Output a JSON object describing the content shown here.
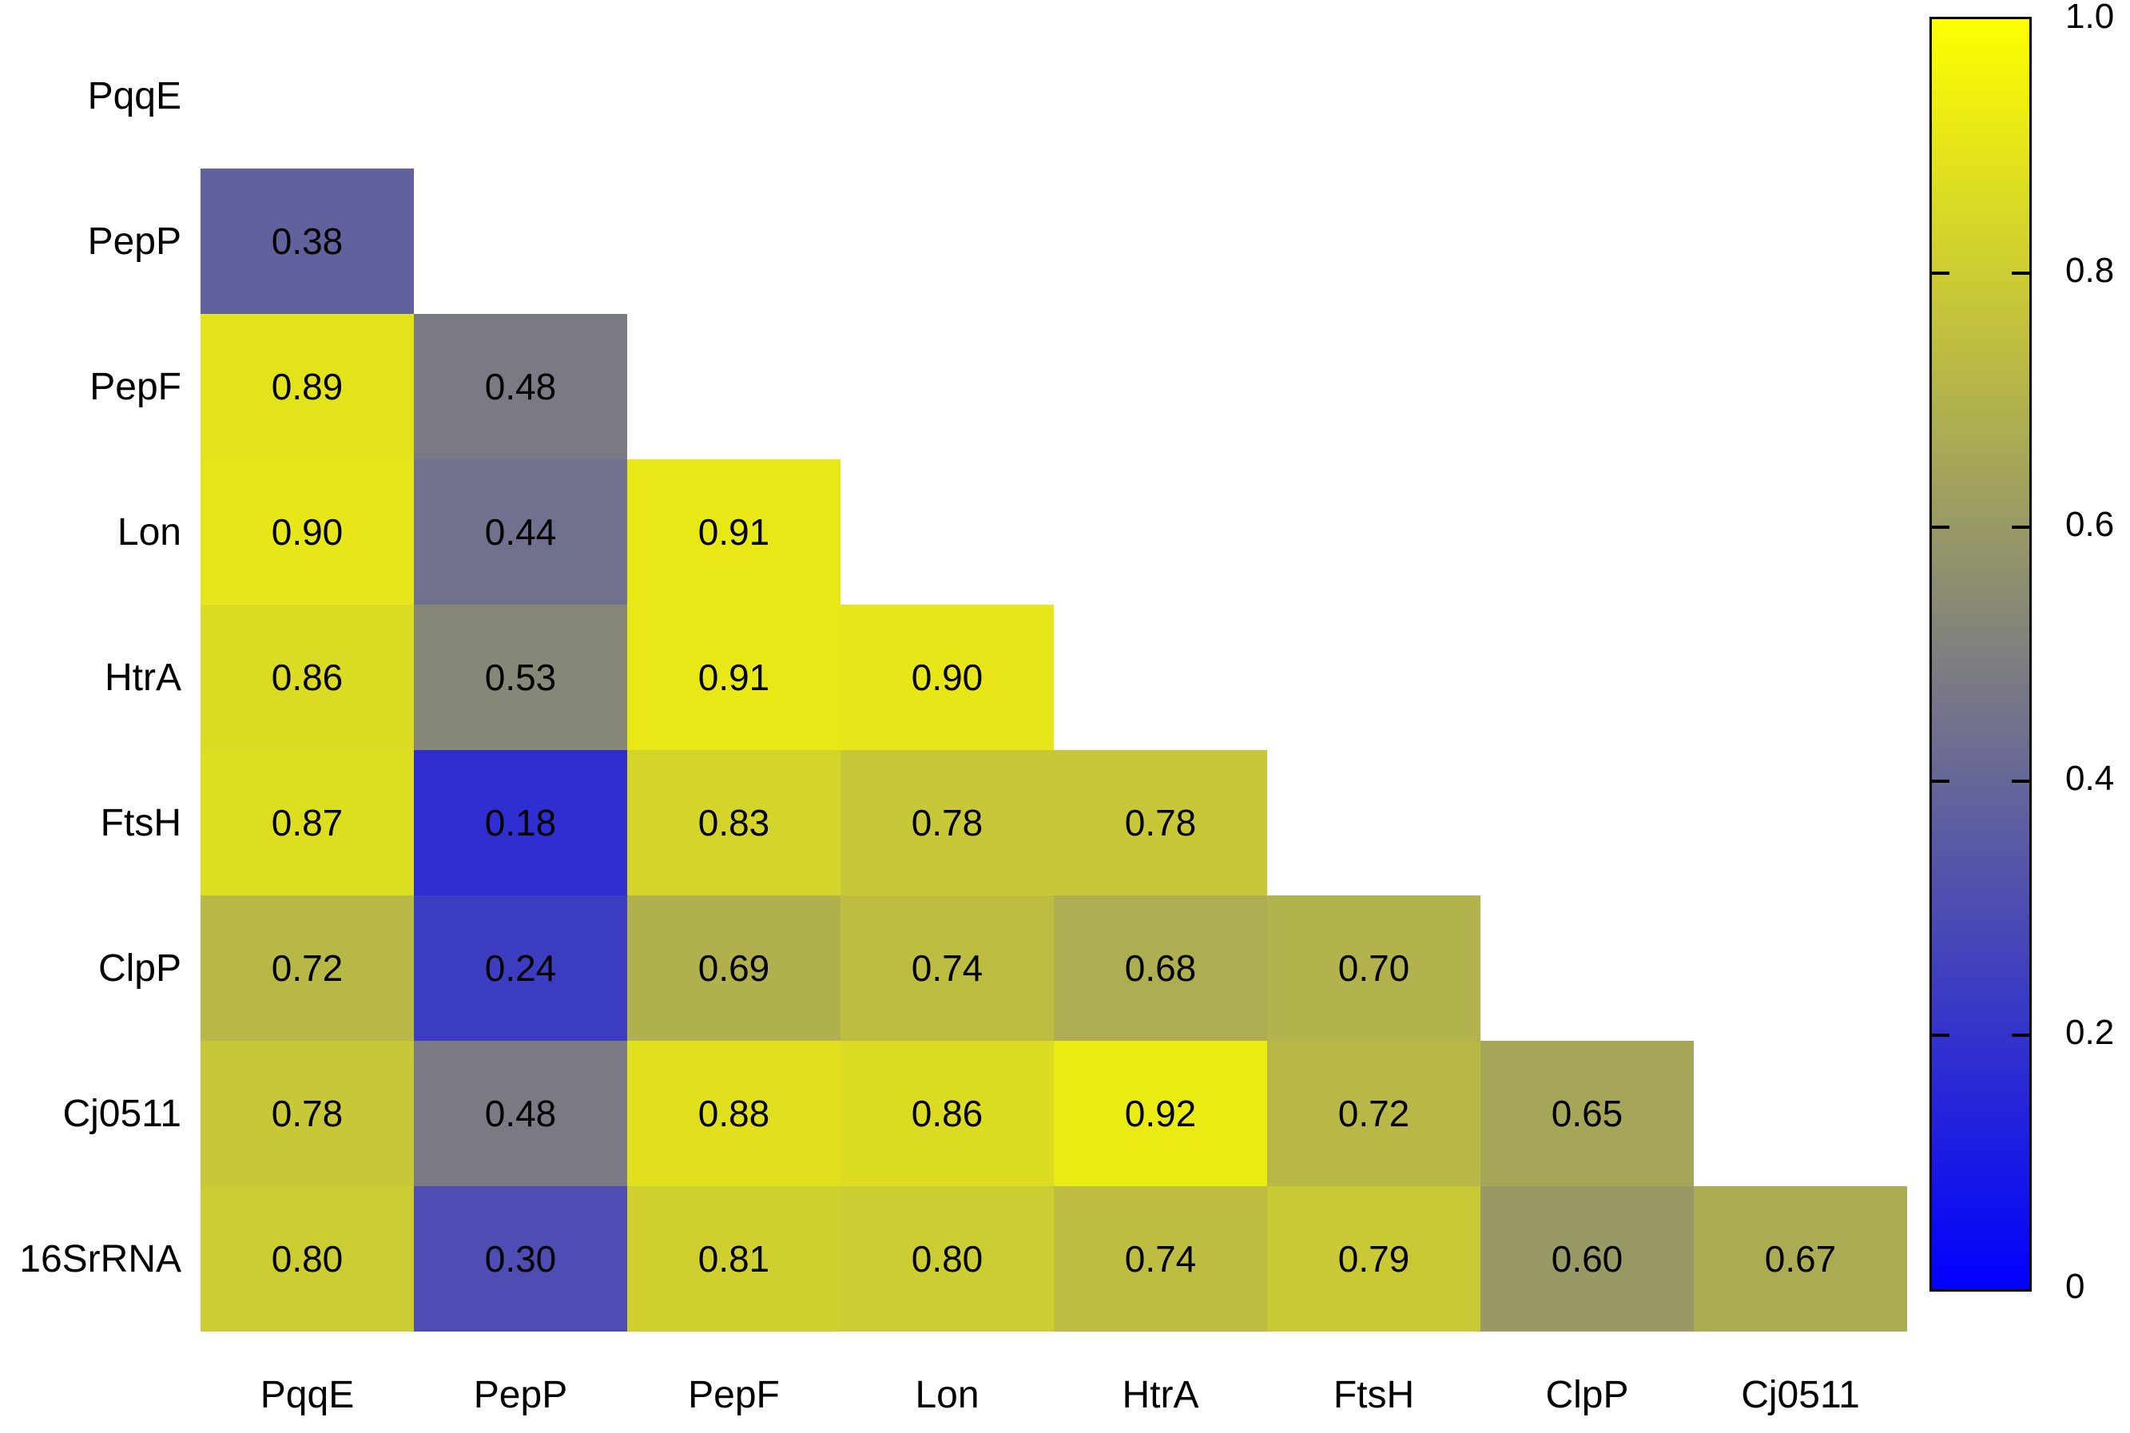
{
  "figure": {
    "background": "#ffffff",
    "text_color": "#000000"
  },
  "chart_data": {
    "type": "heatmap",
    "subtype": "lower-triangular-correlation-matrix",
    "title": "",
    "row_labels": [
      "PqqE",
      "PepP",
      "PepF",
      "Lon",
      "HtrA",
      "FtsH",
      "ClpP",
      "Cj0511",
      "16SrRNA"
    ],
    "col_labels": [
      "PqqE",
      "PepP",
      "PepF",
      "Lon",
      "HtrA",
      "FtsH",
      "ClpP",
      "Cj0511"
    ],
    "values": [
      [],
      [
        "0.38"
      ],
      [
        "0.89",
        "0.48"
      ],
      [
        "0.90",
        "0.44",
        "0.91"
      ],
      [
        "0.86",
        "0.53",
        "0.91",
        "0.90"
      ],
      [
        "0.87",
        "0.18",
        "0.83",
        "0.78",
        "0.78"
      ],
      [
        "0.72",
        "0.24",
        "0.69",
        "0.74",
        "0.68",
        "0.70"
      ],
      [
        "0.78",
        "0.48",
        "0.88",
        "0.86",
        "0.92",
        "0.72",
        "0.65"
      ],
      [
        "0.80",
        "0.30",
        "0.81",
        "0.80",
        "0.74",
        "0.79",
        "0.60",
        "0.67"
      ]
    ],
    "value_range": [
      0,
      1
    ],
    "colorbar": {
      "min": 0,
      "max": 1,
      "tick_labels": [
        "1.0",
        "0.8",
        "0.6",
        "0.4",
        "0.2",
        "0"
      ],
      "tick_values": [
        1.0,
        0.8,
        0.6,
        0.4,
        0.2,
        0
      ],
      "color_low": "#0000ff",
      "color_high": "#ffff00",
      "interpolation": "linear-rgb",
      "position": "right"
    },
    "grid": false
  }
}
